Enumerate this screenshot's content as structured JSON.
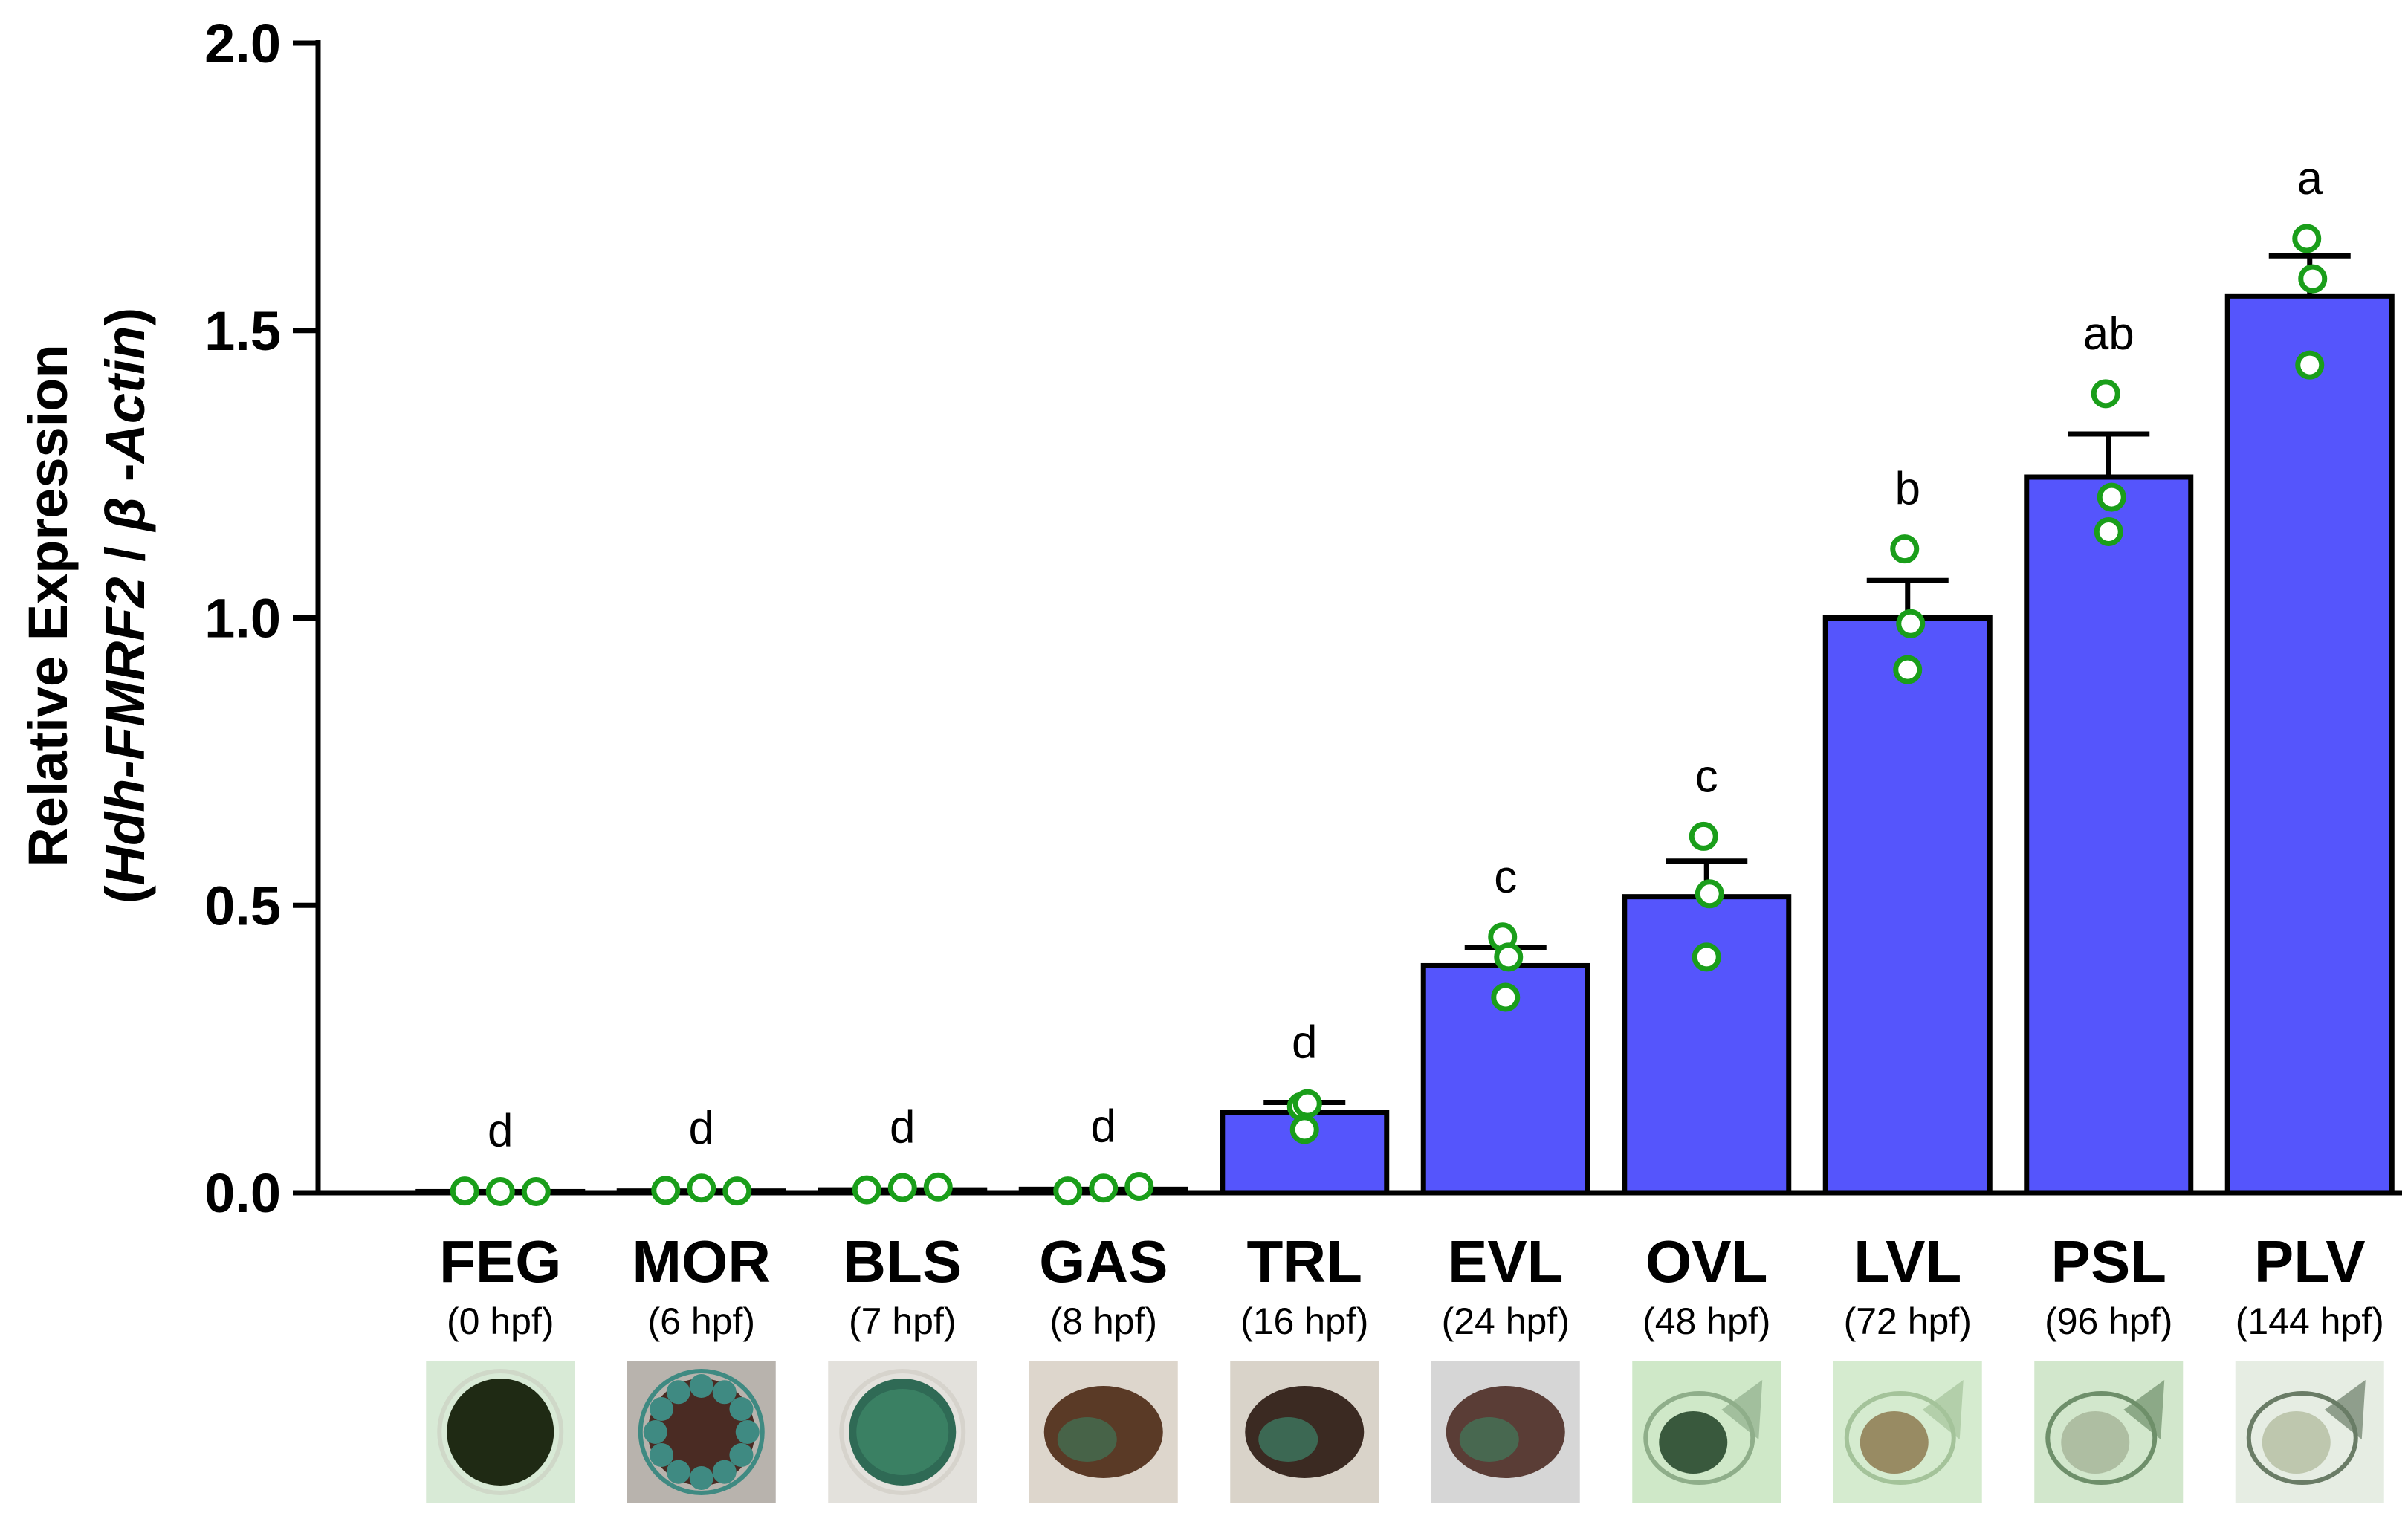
{
  "chart_data": {
    "type": "bar",
    "title": "",
    "ylabel_line1": "Relative Expression",
    "ylabel_line2_parts": [
      "(",
      "Hdh-FMRF2",
      " / ",
      "β",
      " -",
      "Actin",
      ")"
    ],
    "xlabel": "",
    "ylim": [
      0,
      2.0
    ],
    "yticks": [
      "0.0",
      "0.5",
      "1.0",
      "1.5",
      "2.0"
    ],
    "ytick_values": [
      0,
      0.5,
      1.0,
      1.5,
      2.0
    ],
    "grid": false,
    "bar_color": "#5555fc",
    "point_color": "#1a9e1a",
    "categories": [
      "FEG",
      "MOR",
      "BLS",
      "GAS",
      "TRL",
      "EVL",
      "OVL",
      "LVL",
      "PSL",
      "PLV"
    ],
    "timepoints": [
      "(0 hpf)",
      "(6 hpf)",
      "(7 hpf)",
      "(8 hpf)",
      "(16 hpf)",
      "(24 hpf)",
      "(48 hpf)",
      "(72 hpf)",
      "(96 hpf)",
      "(144 hpf)"
    ],
    "values": [
      0.002,
      0.003,
      0.005,
      0.006,
      0.14,
      0.395,
      0.515,
      1.0,
      1.245,
      1.56
    ],
    "errors": [
      0.001,
      0.001,
      0.002,
      0.002,
      0.017,
      0.032,
      0.062,
      0.065,
      0.075,
      0.07
    ],
    "significance": [
      "d",
      "d",
      "d",
      "d",
      "d",
      "c",
      "c",
      "b",
      "ab",
      "a"
    ],
    "points": [
      [
        0.003,
        0.002,
        0.002
      ],
      [
        0.004,
        0.008,
        0.003
      ],
      [
        0.005,
        0.009,
        0.01
      ],
      [
        0.003,
        0.008,
        0.011
      ],
      [
        0.15,
        0.11,
        0.155
      ],
      [
        0.445,
        0.34,
        0.41
      ],
      [
        0.62,
        0.41,
        0.52
      ],
      [
        1.12,
        0.91,
        0.99
      ],
      [
        1.39,
        1.15,
        1.21
      ],
      [
        1.66,
        1.44,
        1.59
      ]
    ],
    "stage_images": [
      {
        "name": "fertilized-egg-photo",
        "bg": "#d8ead6",
        "shape": "circle",
        "fill": "#1f2a14",
        "ring": "#cfd8c8"
      },
      {
        "name": "morula-photo",
        "bg": "#b8b3ad",
        "shape": "circle",
        "fill": "#4a2b23",
        "ring": "#3f8a82"
      },
      {
        "name": "blastula-photo",
        "bg": "#e3e1dc",
        "shape": "circle",
        "fill": "#2f6a55",
        "ring": "#d6d3cc"
      },
      {
        "name": "gastrula-photo",
        "bg": "#ddd6cc",
        "shape": "ellipse",
        "fill": "#5a3a26",
        "ring": "#3d7a5a"
      },
      {
        "name": "trochophore-photo",
        "bg": "#d9d3c9",
        "shape": "ellipse",
        "fill": "#3b2a22",
        "ring": "#3e8a6f"
      },
      {
        "name": "early-veliger-photo",
        "bg": "#d6d6d6",
        "shape": "ellipse",
        "fill": "#5a3d36",
        "ring": "#3f7f5f"
      },
      {
        "name": "old-veliger-photo",
        "bg": "#cfe8c8",
        "shape": "shell",
        "fill": "#1f3f25",
        "ring": "#8fae8a"
      },
      {
        "name": "late-veliger-photo",
        "bg": "#d5ebcf",
        "shape": "shell",
        "fill": "#8d7a50",
        "ring": "#a4c39a"
      },
      {
        "name": "pre-settlement-larva-photo",
        "bg": "#d2e7cc",
        "shape": "shell",
        "fill": "#a8b69a",
        "ring": "#6e8f6a"
      },
      {
        "name": "post-larva-photo",
        "bg": "#e6ede3",
        "shape": "shell",
        "fill": "#b6bfa5",
        "ring": "#6a7c66"
      }
    ]
  }
}
